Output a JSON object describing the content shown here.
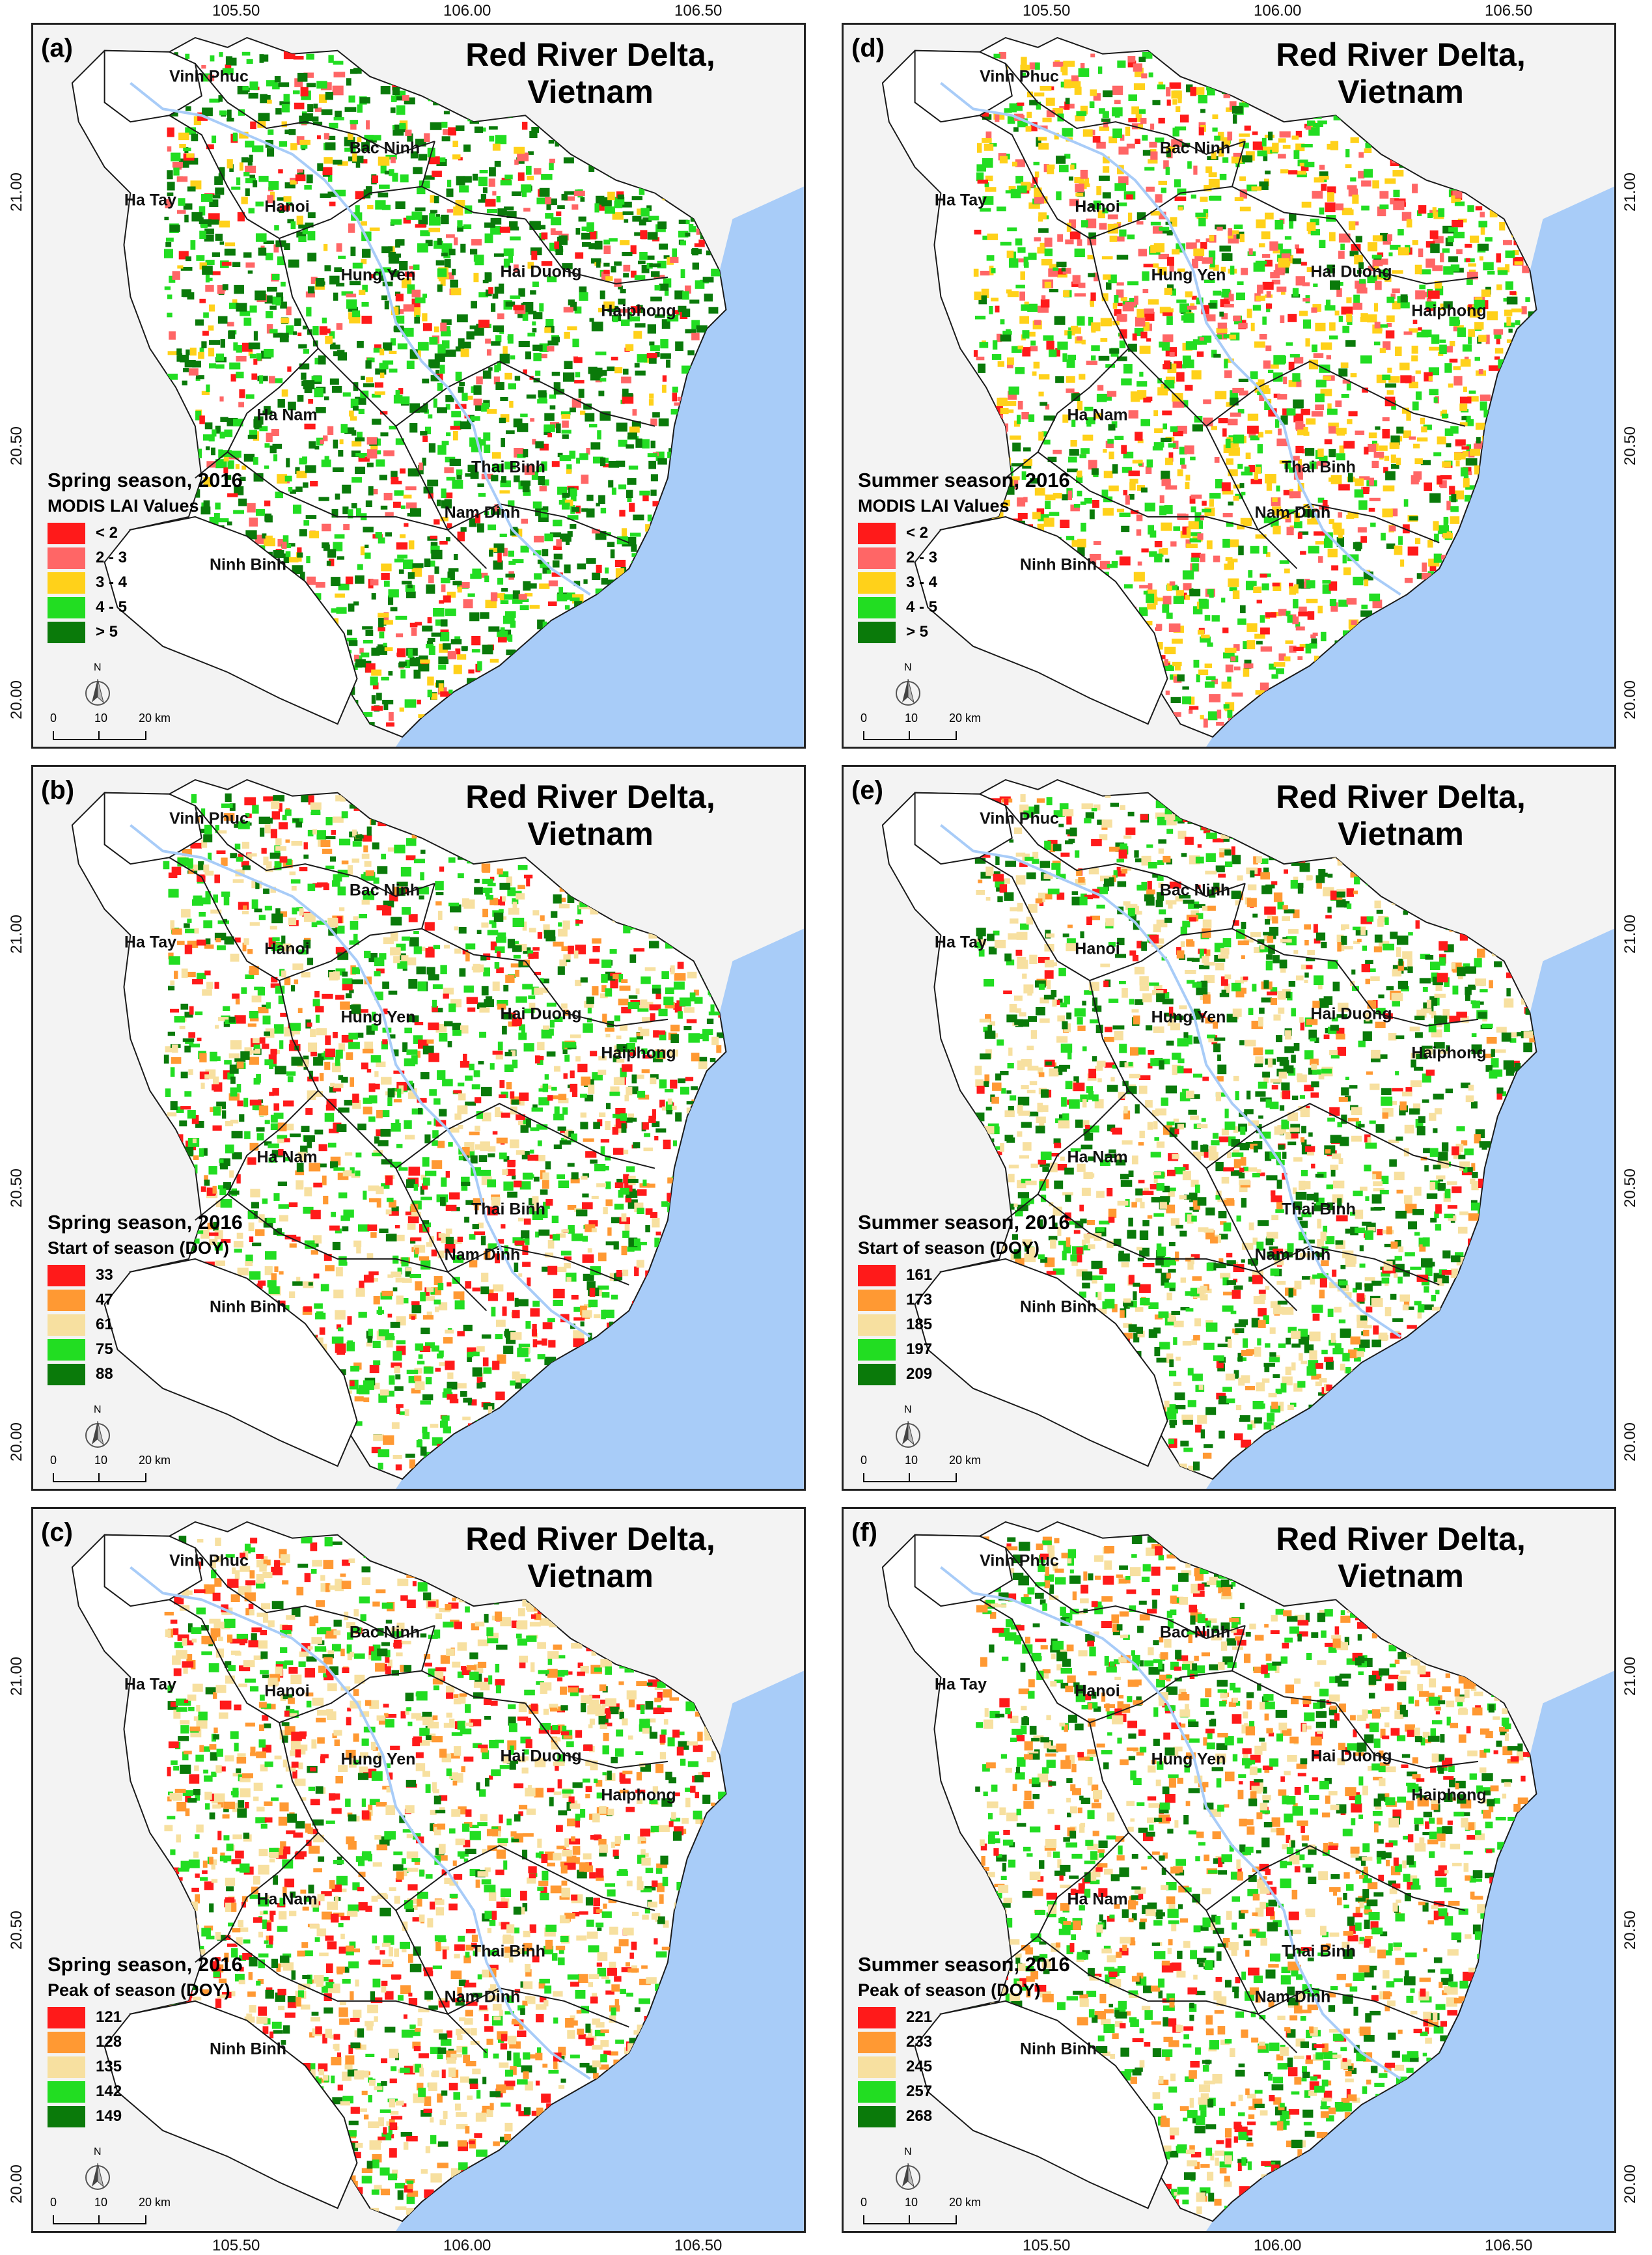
{
  "colors": {
    "sea": "#a8ccf8",
    "land": "#ffffff",
    "background": "#f3f3f3",
    "boundary": "#1a1a1a",
    "river": "#a8ccf8"
  },
  "axis": {
    "top_ticks": [
      "105.50",
      "106.00",
      "106.50"
    ],
    "bottom_ticks": [
      "105.50",
      "106.00",
      "106.50"
    ],
    "left_ticks": [
      "21.00",
      "20.50",
      "20.00"
    ],
    "right_ticks": [
      "21.00",
      "20.50",
      "20.00"
    ]
  },
  "map_title_line1": "Red River Delta,",
  "map_title_line2": "Vietnam",
  "provinces": [
    "Vinh Phuc",
    "Ha Tay",
    "Hanoi",
    "Bac Ninh",
    "Hung Yen",
    "Hai Duong",
    "Haiphong",
    "Ha Nam",
    "Thai Binh",
    "Nam Dinh",
    "Ninh Binh"
  ],
  "north_label": "N",
  "scale_labels": [
    "0",
    "10",
    "20 km"
  ],
  "panels": [
    {
      "letter": "(a)",
      "legend_title": "Spring season, 2016",
      "legend_subtitle": "MODIS LAI Values",
      "legend_items": [
        {
          "label": "< 2",
          "color": "#ff1a1a"
        },
        {
          "label": "2 - 3",
          "color": "#ff6666"
        },
        {
          "label": "3 - 4",
          "color": "#ffd11a"
        },
        {
          "label": "4 - 5",
          "color": "#22dd22"
        },
        {
          "label": "> 5",
          "color": "#0a7a0a"
        }
      ],
      "dominant_palette": [
        "#0a7a0a",
        "#0a7a0a",
        "#0a7a0a",
        "#22dd22",
        "#22dd22"
      ]
    },
    {
      "letter": "(b)",
      "legend_title": "Spring season, 2016",
      "legend_subtitle": "Start of season (DOY)",
      "legend_items": [
        {
          "label": "33",
          "color": "#ff1a1a"
        },
        {
          "label": "47",
          "color": "#ff9933"
        },
        {
          "label": "61",
          "color": "#f7e0a0"
        },
        {
          "label": "75",
          "color": "#22dd22"
        },
        {
          "label": "88",
          "color": "#0a7a0a"
        }
      ],
      "dominant_palette": [
        "#22dd22",
        "#22dd22",
        "#0a7a0a",
        "#ff1a1a",
        "#f7e0a0"
      ]
    },
    {
      "letter": "(c)",
      "legend_title": "Spring season, 2016",
      "legend_subtitle": "Peak of season (DOY)",
      "legend_items": [
        {
          "label": "121",
          "color": "#ff1a1a"
        },
        {
          "label": "128",
          "color": "#ff9933"
        },
        {
          "label": "135",
          "color": "#f7e0a0"
        },
        {
          "label": "142",
          "color": "#22dd22"
        },
        {
          "label": "149",
          "color": "#0a7a0a"
        }
      ],
      "dominant_palette": [
        "#f7e0a0",
        "#f7e0a0",
        "#ff9933",
        "#22dd22",
        "#ff1a1a"
      ]
    },
    {
      "letter": "(d)",
      "legend_title": "Summer season, 2016",
      "legend_subtitle": "MODIS LAI Values",
      "legend_items": [
        {
          "label": "< 2",
          "color": "#ff1a1a"
        },
        {
          "label": "2 - 3",
          "color": "#ff6666"
        },
        {
          "label": "3 - 4",
          "color": "#ffd11a"
        },
        {
          "label": "4 - 5",
          "color": "#22dd22"
        },
        {
          "label": "> 5",
          "color": "#0a7a0a"
        }
      ],
      "dominant_palette": [
        "#22dd22",
        "#22dd22",
        "#ffd11a",
        "#ffd11a",
        "#ff6666"
      ]
    },
    {
      "letter": "(e)",
      "legend_title": "Summer season, 2016",
      "legend_subtitle": "Start of season (DOY)",
      "legend_items": [
        {
          "label": "161",
          "color": "#ff1a1a"
        },
        {
          "label": "173",
          "color": "#ff9933"
        },
        {
          "label": "185",
          "color": "#f7e0a0"
        },
        {
          "label": "197",
          "color": "#22dd22"
        },
        {
          "label": "209",
          "color": "#0a7a0a"
        }
      ],
      "dominant_palette": [
        "#0a7a0a",
        "#0a7a0a",
        "#f7e0a0",
        "#22dd22",
        "#f7e0a0"
      ]
    },
    {
      "letter": "(f)",
      "legend_title": "Summer season, 2016",
      "legend_subtitle": "Peak of season (DOY)",
      "legend_items": [
        {
          "label": "221",
          "color": "#ff1a1a"
        },
        {
          "label": "233",
          "color": "#ff9933"
        },
        {
          "label": "245",
          "color": "#f7e0a0"
        },
        {
          "label": "257",
          "color": "#22dd22"
        },
        {
          "label": "268",
          "color": "#0a7a0a"
        }
      ],
      "dominant_palette": [
        "#22dd22",
        "#22dd22",
        "#ff9933",
        "#f7e0a0",
        "#0a7a0a"
      ]
    }
  ]
}
